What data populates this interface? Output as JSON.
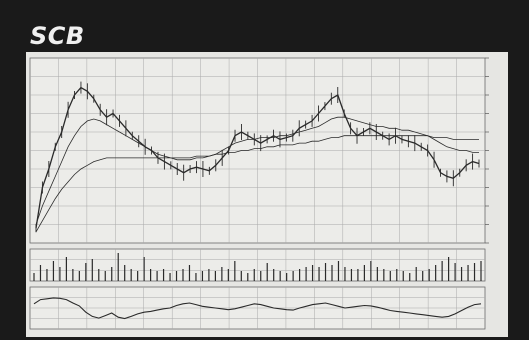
{
  "header": {
    "ticker": "SCB"
  },
  "colors": {
    "frame": "#1a1a1a",
    "panel": "#e6e6e3",
    "grid": "#a9a9a9",
    "ink": "#2a2a2a"
  },
  "chart_data": {
    "type": "line",
    "title": "",
    "grid": true,
    "panels": [
      "price",
      "volume",
      "oscillator"
    ],
    "price": {
      "ylim": [
        0,
        100
      ],
      "series": [
        {
          "values": [
            8,
            30,
            40,
            52,
            60,
            72,
            80,
            84,
            82,
            78,
            72,
            68,
            70,
            66,
            62,
            58,
            55,
            52,
            50,
            46,
            44,
            42,
            40,
            38,
            40,
            41,
            40,
            39,
            42,
            46,
            50,
            58,
            60,
            58,
            56,
            54,
            56,
            58,
            56,
            57,
            58,
            62,
            64,
            66,
            70,
            74,
            78,
            80,
            70,
            62,
            58,
            60,
            62,
            60,
            58,
            56,
            58,
            56,
            55,
            54,
            52,
            50,
            45,
            38,
            36,
            35,
            38,
            42,
            44,
            43
          ]
        },
        {
          "values": [
            10,
            20,
            28,
            36,
            44,
            52,
            58,
            63,
            66,
            67,
            66,
            64,
            62,
            60,
            58,
            56,
            54,
            52,
            50,
            48,
            47,
            46,
            45,
            45,
            45,
            46,
            46,
            47,
            48,
            50,
            52,
            54,
            55,
            56,
            56,
            57,
            57,
            57,
            58,
            58,
            59,
            60,
            61,
            62,
            63,
            65,
            67,
            68,
            68,
            67,
            66,
            65,
            64,
            63,
            63,
            62,
            62,
            61,
            61,
            60,
            59,
            58,
            56,
            54,
            52,
            51,
            50,
            50,
            49,
            49
          ]
        },
        {
          "values": [
            6,
            12,
            18,
            24,
            29,
            33,
            37,
            40,
            42,
            44,
            45,
            46,
            46,
            46,
            46,
            46,
            46,
            46,
            46,
            46,
            46,
            46,
            46,
            46,
            46,
            47,
            47,
            47,
            48,
            48,
            49,
            49,
            50,
            50,
            51,
            51,
            52,
            52,
            53,
            53,
            53,
            54,
            54,
            55,
            55,
            56,
            57,
            57,
            58,
            58,
            58,
            58,
            58,
            58,
            58,
            58,
            58,
            58,
            58,
            58,
            58,
            58,
            57,
            57,
            57,
            56,
            56,
            56,
            56,
            56
          ]
        }
      ]
    },
    "volume": {
      "values": [
        4,
        8,
        6,
        10,
        7,
        12,
        6,
        5,
        9,
        11,
        6,
        5,
        7,
        14,
        8,
        6,
        5,
        12,
        6,
        5,
        6,
        4,
        5,
        6,
        8,
        4,
        5,
        6,
        5,
        7,
        6,
        10,
        5,
        4,
        6,
        5,
        9,
        6,
        5,
        4,
        5,
        6,
        7,
        8,
        7,
        9,
        8,
        10,
        7,
        6,
        6,
        8,
        10,
        7,
        6,
        5,
        6,
        5,
        4,
        7,
        5,
        6,
        8,
        10,
        12,
        9,
        7,
        8,
        9,
        10
      ]
    },
    "oscillator": {
      "values": [
        60,
        70,
        72,
        74,
        73,
        70,
        62,
        55,
        40,
        30,
        26,
        32,
        38,
        28,
        25,
        30,
        36,
        40,
        42,
        45,
        48,
        50,
        56,
        60,
        62,
        58,
        54,
        52,
        50,
        48,
        46,
        48,
        52,
        56,
        60,
        58,
        54,
        50,
        48,
        46,
        45,
        50,
        54,
        58,
        60,
        62,
        58,
        54,
        50,
        52,
        54,
        56,
        55,
        52,
        48,
        44,
        42,
        40,
        38,
        36,
        34,
        32,
        30,
        28,
        30,
        36,
        44,
        52,
        58,
        60
      ]
    }
  }
}
